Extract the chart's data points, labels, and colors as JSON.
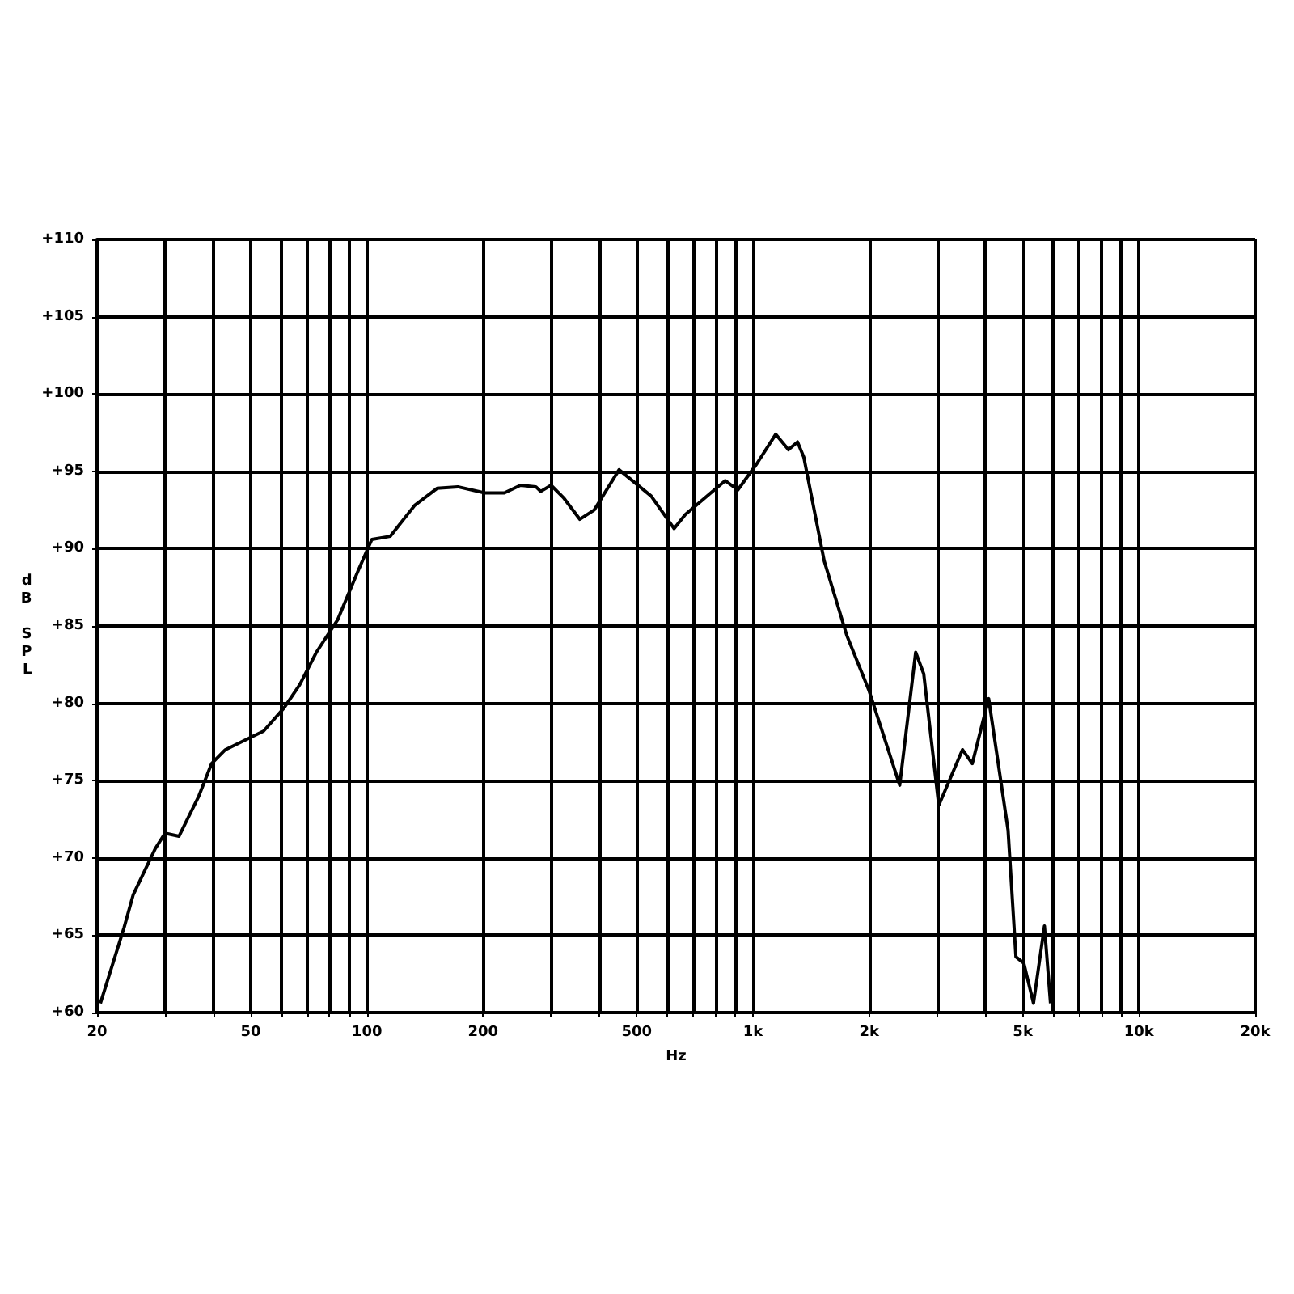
{
  "chart_data": {
    "type": "line",
    "xlabel": "Hz",
    "ylabel": "dB SPL",
    "log": "x",
    "grid": true,
    "line_style": "solid",
    "marker": "none",
    "xlim": [
      20,
      20000
    ],
    "ylim": [
      60,
      110
    ],
    "xticks": [
      20,
      {
        "value": 30,
        "label": null
      },
      {
        "value": 40,
        "label": null
      },
      50,
      {
        "value": 60,
        "label": null
      },
      {
        "value": 70,
        "label": null
      },
      {
        "value": 80,
        "label": null
      },
      {
        "value": 90,
        "label": null
      },
      100,
      200,
      {
        "value": 300,
        "label": null
      },
      {
        "value": 400,
        "label": null
      },
      500,
      {
        "value": 600,
        "label": null
      },
      {
        "value": 700,
        "label": null
      },
      {
        "value": 800,
        "label": null
      },
      {
        "value": 900,
        "label": null
      },
      {
        "value": 1000,
        "label": "1k"
      },
      {
        "value": 2000,
        "label": "2k"
      },
      {
        "value": 3000,
        "label": null
      },
      {
        "value": 4000,
        "label": null
      },
      {
        "value": 5000,
        "label": "5k"
      },
      {
        "value": 6000,
        "label": null
      },
      {
        "value": 7000,
        "label": null
      },
      {
        "value": 8000,
        "label": null
      },
      {
        "value": 9000,
        "label": null
      },
      {
        "value": 10000,
        "label": "10k"
      },
      {
        "value": 20000,
        "label": "20k"
      }
    ],
    "yticks": [
      {
        "value": 60,
        "label": "+60"
      },
      {
        "value": 65,
        "label": "+65"
      },
      {
        "value": 70,
        "label": "+70"
      },
      {
        "value": 75,
        "label": "+75"
      },
      {
        "value": 80,
        "label": "+80"
      },
      {
        "value": 85,
        "label": "+85"
      },
      {
        "value": 90,
        "label": "+90"
      },
      {
        "value": 95,
        "label": "+95"
      },
      {
        "value": 100,
        "label": "+100"
      },
      {
        "value": 105,
        "label": "+105"
      },
      {
        "value": 110,
        "label": "+110"
      }
    ],
    "series": [
      {
        "color": "#000000",
        "x": [
          20.4,
          23.5,
          24.8,
          28.3,
          30,
          32.6,
          36.7,
          39.6,
          43,
          51,
          54,
          61,
          67,
          74,
          84,
          95,
          103,
          115,
          133,
          152,
          172,
          202,
          227,
          250,
          274,
          282,
          300,
          323,
          356,
          388,
          450,
          545,
          625,
          668,
          848,
          914,
          1024,
          1146,
          1236,
          1305,
          1355,
          1530,
          1750,
          2000,
          2400,
          2640,
          2770,
          3030,
          3490,
          3700,
          4080,
          4580,
          4800,
          5030,
          5330,
          5690,
          5900
        ],
        "values": [
          60.6,
          65.5,
          67.6,
          70.6,
          71.6,
          71.4,
          74,
          76.1,
          77,
          77.9,
          78.2,
          79.7,
          81.2,
          83.3,
          85.4,
          88.6,
          90.6,
          90.8,
          92.8,
          93.9,
          94,
          93.6,
          93.6,
          94.1,
          94,
          93.7,
          94.1,
          93.3,
          91.9,
          92.5,
          95.1,
          93.4,
          91.3,
          92.2,
          94.4,
          93.8,
          95.5,
          97.4,
          96.4,
          96.9,
          95.9,
          89.2,
          84.4,
          80.8,
          74.7,
          83.3,
          81.9,
          73.4,
          77,
          76.1,
          80.3,
          71.8,
          63.6,
          63.2,
          60.6,
          65.6,
          60.6
        ]
      }
    ]
  }
}
